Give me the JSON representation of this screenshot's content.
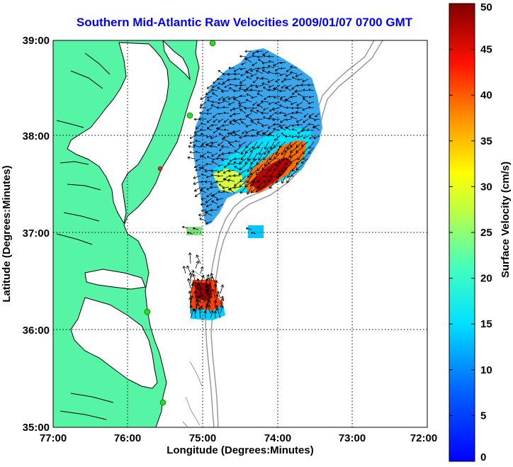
{
  "title": "Southern Mid-Atlantic Raw Velocities 2009/01/07 0700 GMT",
  "map": {
    "xlabel": "Longitude (Degrees:Minutes)",
    "ylabel": "Latitude (Degrees:Minutes)",
    "xticks": [
      "77:00",
      "76:00",
      "75:00",
      "74:00",
      "73:00",
      "72:00"
    ],
    "yticks": [
      "39:00",
      "38:00",
      "37:00",
      "36:00",
      "35:00"
    ],
    "land_color": "#55f5a5",
    "coast_color": "#000000",
    "bathymetry_color": "#999999"
  },
  "colorbar": {
    "label": "Surface Velocity (cm/s)",
    "ticks": [
      "0",
      "5",
      "10",
      "15",
      "20",
      "25",
      "30",
      "35",
      "40",
      "45",
      "50"
    ],
    "min": 0,
    "max": 50,
    "colormap": [
      "#0000ff",
      "#0080ff",
      "#00ffff",
      "#80ff80",
      "#ffff00",
      "#ff8000",
      "#ff0000",
      "#800000"
    ]
  }
}
